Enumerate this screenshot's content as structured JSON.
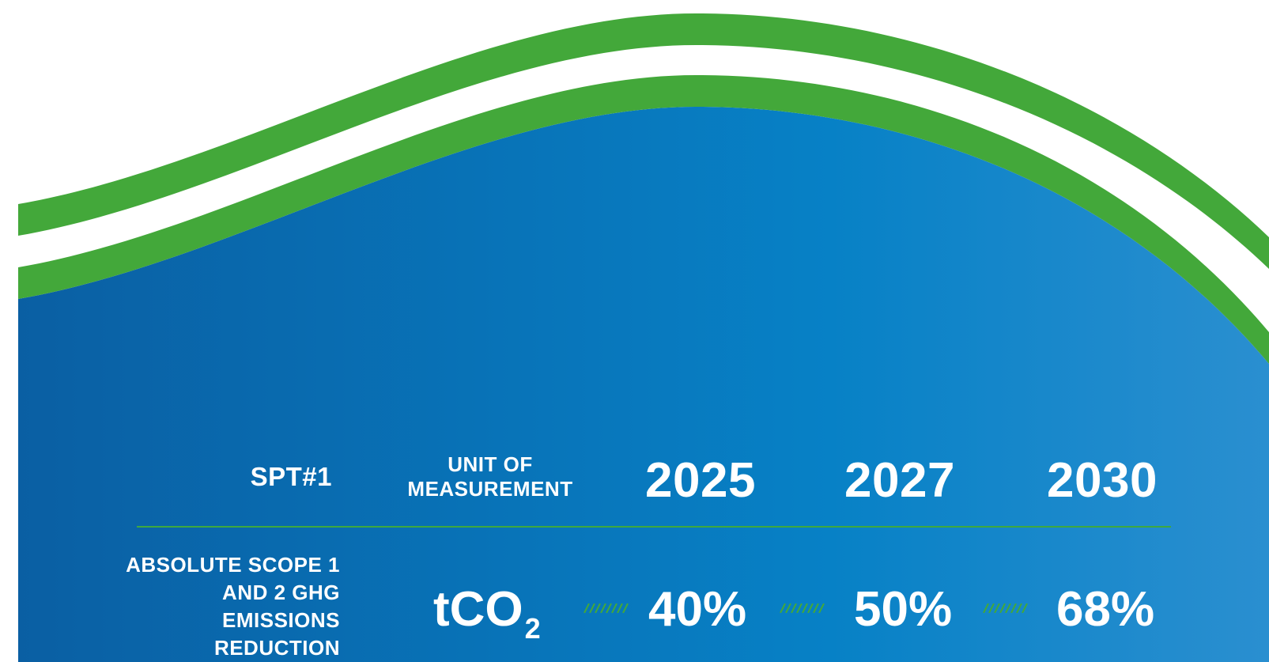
{
  "table": {
    "header": {
      "spt": "SPT#1",
      "unit_label": "UNIT OF MEASUREMENT",
      "years": [
        "2025",
        "2027",
        "2030"
      ]
    },
    "row": {
      "metric": "ABSOLUTE SCOPE 1 AND 2 GHG EMISSIONS REDUCTION",
      "unit_main": "tCO",
      "unit_sub": "2",
      "values": [
        "40%",
        "50%",
        "68%"
      ]
    }
  },
  "colors": {
    "blue_dark": "#0a5fa3",
    "blue_light": "#2a8fd0",
    "green": "#43a83a",
    "text": "#ffffff"
  }
}
